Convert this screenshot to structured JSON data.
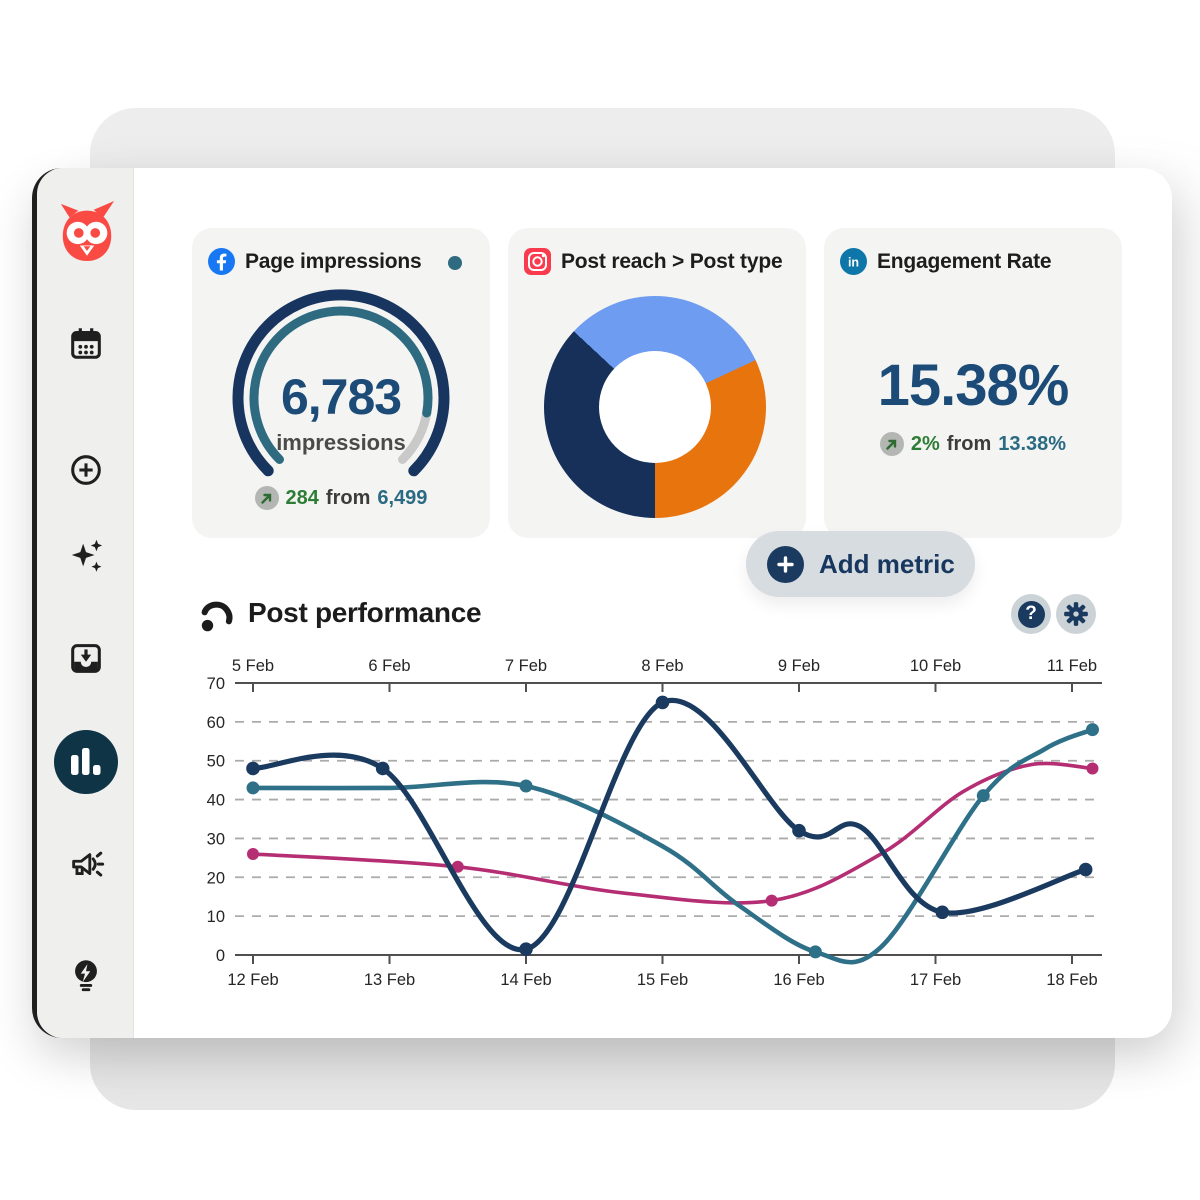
{
  "sidebar": {
    "logo": "hootsuite-owl",
    "items": [
      {
        "name": "calendar",
        "active": false
      },
      {
        "name": "create",
        "active": false
      },
      {
        "name": "ai-sparkles",
        "active": false
      },
      {
        "name": "inbox",
        "active": false
      },
      {
        "name": "analytics",
        "active": true
      },
      {
        "name": "promote",
        "active": false
      },
      {
        "name": "ideas",
        "active": false
      }
    ]
  },
  "metric_cards": [
    {
      "network": "facebook",
      "title": "Page impressions",
      "legend_dot_color": "#2e6b80",
      "gauge": {
        "value": "6,783",
        "unit": "impressions",
        "fill_ratio": 0.87,
        "arc_color": "#17355e",
        "progress_color": "#2e6b80",
        "rest_color": "#c9c9c9"
      },
      "change": {
        "amount": "284",
        "word": "from",
        "previous": "6,499"
      }
    },
    {
      "network": "instagram",
      "title": "Post reach > Post type",
      "donut": {
        "start_deg": -47,
        "slices": [
          {
            "label": "share-1",
            "color": "#6d9cf0",
            "deg": 112
          },
          {
            "label": "share-2",
            "color": "#e8740e",
            "deg": 115
          },
          {
            "label": "share-3",
            "color": "#17305a",
            "deg": 133
          }
        ]
      }
    },
    {
      "network": "linkedin",
      "title": "Engagement Rate",
      "value": "15.38%",
      "change": {
        "amount": "2%",
        "word": "from",
        "previous": "13.38%"
      }
    }
  ],
  "add_metric_button": {
    "label": "Add metric"
  },
  "section": {
    "title": "Post performance"
  },
  "icon_buttons": {
    "help_glyph": "?"
  },
  "chart_data": {
    "type": "line",
    "title": "Post performance",
    "grid": "dashed horizontal",
    "x_axis_top": {
      "labels": [
        "5 Feb",
        "6 Feb",
        "7 Feb",
        "8 Feb",
        "9 Feb",
        "10 Feb",
        "11 Feb"
      ]
    },
    "x_axis_bottom": {
      "labels": [
        "12 Feb",
        "13 Feb",
        "14 Feb",
        "15 Feb",
        "16 Feb",
        "17 Feb",
        "18 Feb"
      ]
    },
    "y_axis": {
      "min": 0,
      "max": 70,
      "ticks": [
        70,
        60,
        50,
        40,
        30,
        20,
        10,
        0
      ],
      "grid_values": [
        60,
        50,
        40,
        30,
        20,
        10
      ]
    },
    "series": [
      {
        "name": "magenta",
        "color": "#b52e73",
        "width": 3.6,
        "dot_radius": 6,
        "points": [
          [
            0,
            26,
            1
          ],
          [
            1.5,
            22.7,
            1
          ],
          [
            2.7,
            16,
            0
          ],
          [
            3.8,
            14,
            1
          ],
          [
            4.6,
            26,
            0
          ],
          [
            5.2,
            42,
            0
          ],
          [
            5.7,
            49,
            0
          ],
          [
            6.15,
            48,
            1
          ]
        ]
      },
      {
        "name": "teal",
        "color": "#2f7089",
        "width": 4.6,
        "dot_radius": 6.5,
        "points": [
          [
            0,
            43,
            1
          ],
          [
            1,
            43,
            0
          ],
          [
            2,
            43.5,
            1
          ],
          [
            3,
            28,
            0
          ],
          [
            3.55,
            13,
            0
          ],
          [
            4.12,
            0.8,
            1
          ],
          [
            4.6,
            2,
            0
          ],
          [
            5.35,
            41,
            1
          ],
          [
            5.8,
            53,
            0
          ],
          [
            6.15,
            58,
            1
          ]
        ]
      },
      {
        "name": "navy",
        "color": "#1a3a60",
        "width": 5.2,
        "dot_radius": 6.8,
        "points": [
          [
            0,
            48,
            1
          ],
          [
            0.95,
            48,
            1
          ],
          [
            2,
            1.5,
            1
          ],
          [
            3,
            65,
            1
          ],
          [
            4,
            32,
            1
          ],
          [
            4.45,
            33,
            0
          ],
          [
            5.05,
            11,
            1
          ],
          [
            6.1,
            22,
            1
          ]
        ]
      }
    ]
  }
}
